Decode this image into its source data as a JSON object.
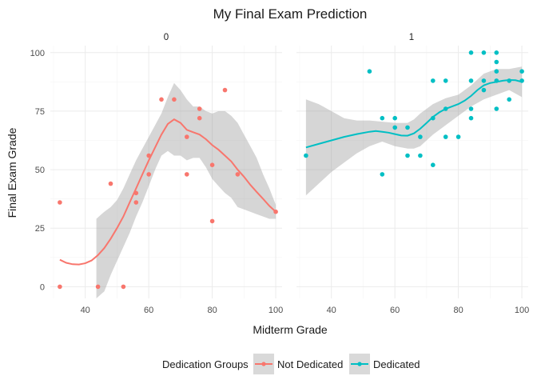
{
  "chart_data": {
    "type": "scatter",
    "title": "My Final Exam Prediction",
    "xlabel": "Midterm Grade",
    "ylabel": "Final Exam Grade",
    "xlim": [
      29,
      102
    ],
    "ylim": [
      -5,
      103
    ],
    "x_ticks": [
      40,
      60,
      80,
      100
    ],
    "y_ticks": [
      0,
      25,
      50,
      75,
      100
    ],
    "grid": true,
    "legend": {
      "title": "Dedication Groups",
      "position": "bottom",
      "entries": [
        {
          "label": "Not Dedicated",
          "color": "#F8766D"
        },
        {
          "label": "Dedicated",
          "color": "#00BFC4"
        }
      ]
    },
    "panels": [
      {
        "label": "0",
        "series": "Not Dedicated",
        "color": "#F8766D",
        "points": [
          [
            32,
            36
          ],
          [
            32,
            0
          ],
          [
            44,
            0
          ],
          [
            48,
            44
          ],
          [
            52,
            0
          ],
          [
            56,
            36
          ],
          [
            56,
            40
          ],
          [
            60,
            56
          ],
          [
            60,
            48
          ],
          [
            64,
            80
          ],
          [
            68,
            80
          ],
          [
            72,
            64
          ],
          [
            72,
            48
          ],
          [
            76,
            76
          ],
          [
            76,
            72
          ],
          [
            80,
            52
          ],
          [
            80,
            28
          ],
          [
            84,
            84
          ],
          [
            88,
            48
          ],
          [
            100,
            32
          ]
        ],
        "smooth": [
          [
            32,
            11.5
          ],
          [
            34,
            10.2
          ],
          [
            36,
            9.6
          ],
          [
            38,
            9.5
          ],
          [
            40,
            10.0
          ],
          [
            42,
            11.2
          ],
          [
            44,
            13.5
          ],
          [
            46,
            16.5
          ],
          [
            48,
            20.5
          ],
          [
            50,
            25.0
          ],
          [
            52,
            30.0
          ],
          [
            54,
            36.0
          ],
          [
            56,
            42.0
          ],
          [
            58,
            48.0
          ],
          [
            60,
            54.0
          ],
          [
            62,
            59.5
          ],
          [
            64,
            65.0
          ],
          [
            66,
            69.5
          ],
          [
            68,
            71.5
          ],
          [
            70,
            70.0
          ],
          [
            72,
            67.0
          ],
          [
            74,
            66.0
          ],
          [
            76,
            65.0
          ],
          [
            78,
            63.0
          ],
          [
            80,
            60.5
          ],
          [
            82,
            58.5
          ],
          [
            84,
            56.0
          ],
          [
            86,
            53.5
          ],
          [
            88,
            50.0
          ],
          [
            90,
            47.0
          ],
          [
            92,
            43.5
          ],
          [
            94,
            40.5
          ],
          [
            96,
            37.5
          ],
          [
            98,
            34.5
          ],
          [
            100,
            32.0
          ]
        ],
        "band_upper": [
          [
            43.5,
            29
          ],
          [
            46,
            32
          ],
          [
            48,
            34
          ],
          [
            50,
            37
          ],
          [
            52,
            42
          ],
          [
            54,
            48
          ],
          [
            56,
            54
          ],
          [
            58,
            59
          ],
          [
            60,
            64
          ],
          [
            62,
            69
          ],
          [
            64,
            74
          ],
          [
            66,
            81
          ],
          [
            68,
            87
          ],
          [
            70,
            84
          ],
          [
            72,
            80
          ],
          [
            74,
            77
          ],
          [
            76,
            77
          ],
          [
            78,
            75
          ],
          [
            80,
            74
          ],
          [
            82,
            75
          ],
          [
            84,
            75
          ],
          [
            86,
            73
          ],
          [
            88,
            70
          ],
          [
            90,
            65
          ],
          [
            92,
            60
          ],
          [
            94,
            55
          ],
          [
            96,
            48
          ],
          [
            98,
            42
          ],
          [
            100,
            35
          ]
        ],
        "band_lower": [
          [
            100,
            29
          ],
          [
            98,
            29
          ],
          [
            96,
            30
          ],
          [
            94,
            31
          ],
          [
            92,
            32
          ],
          [
            90,
            33
          ],
          [
            88,
            34
          ],
          [
            86,
            38
          ],
          [
            84,
            40
          ],
          [
            82,
            43
          ],
          [
            80,
            46
          ],
          [
            78,
            51
          ],
          [
            76,
            55
          ],
          [
            74,
            55
          ],
          [
            72,
            54
          ],
          [
            70,
            56
          ],
          [
            68,
            56
          ],
          [
            66,
            58
          ],
          [
            64,
            56
          ],
          [
            62,
            50
          ],
          [
            60,
            43
          ],
          [
            58,
            36
          ],
          [
            56,
            30
          ],
          [
            54,
            23
          ],
          [
            52,
            17
          ],
          [
            50,
            11
          ],
          [
            48,
            5
          ],
          [
            46,
            -2
          ],
          [
            43.5,
            -5
          ]
        ]
      },
      {
        "label": "1",
        "series": "Dedicated",
        "color": "#00BFC4",
        "points": [
          [
            32,
            56
          ],
          [
            52,
            92
          ],
          [
            56,
            72
          ],
          [
            56,
            48
          ],
          [
            60,
            72
          ],
          [
            60,
            68
          ],
          [
            64,
            68
          ],
          [
            64,
            56
          ],
          [
            68,
            64
          ],
          [
            68,
            56
          ],
          [
            72,
            88
          ],
          [
            72,
            72
          ],
          [
            72,
            52
          ],
          [
            76,
            88
          ],
          [
            76,
            76
          ],
          [
            76,
            64
          ],
          [
            80,
            64
          ],
          [
            84,
            100
          ],
          [
            84,
            88
          ],
          [
            84,
            76
          ],
          [
            84,
            72
          ],
          [
            88,
            100
          ],
          [
            88,
            88
          ],
          [
            88,
            84
          ],
          [
            92,
            100
          ],
          [
            92,
            96
          ],
          [
            92,
            92
          ],
          [
            92,
            88
          ],
          [
            92,
            76
          ],
          [
            96,
            88
          ],
          [
            96,
            80
          ],
          [
            100,
            92
          ],
          [
            100,
            88
          ]
        ],
        "smooth": [
          [
            32,
            59.5
          ],
          [
            36,
            61.0
          ],
          [
            40,
            62.5
          ],
          [
            44,
            64.0
          ],
          [
            48,
            65.2
          ],
          [
            52,
            66.2
          ],
          [
            54,
            66.5
          ],
          [
            56,
            66.2
          ],
          [
            58,
            65.8
          ],
          [
            60,
            65.2
          ],
          [
            62,
            64.6
          ],
          [
            64,
            64.5
          ],
          [
            66,
            65.5
          ],
          [
            68,
            67.5
          ],
          [
            70,
            70.0
          ],
          [
            72,
            72.5
          ],
          [
            74,
            74.5
          ],
          [
            76,
            76.0
          ],
          [
            78,
            77.0
          ],
          [
            80,
            78.0
          ],
          [
            82,
            79.5
          ],
          [
            84,
            81.5
          ],
          [
            86,
            84.0
          ],
          [
            88,
            86.0
          ],
          [
            90,
            87.0
          ],
          [
            92,
            87.5
          ],
          [
            94,
            88.0
          ],
          [
            96,
            88.3
          ],
          [
            98,
            88.2
          ],
          [
            100,
            87.5
          ]
        ],
        "band_upper": [
          [
            32,
            80
          ],
          [
            36,
            78
          ],
          [
            40,
            75
          ],
          [
            44,
            72
          ],
          [
            48,
            71
          ],
          [
            52,
            71
          ],
          [
            56,
            70.5
          ],
          [
            60,
            70
          ],
          [
            64,
            70
          ],
          [
            66,
            71.5
          ],
          [
            68,
            74
          ],
          [
            72,
            78
          ],
          [
            76,
            80.5
          ],
          [
            80,
            82
          ],
          [
            84,
            86
          ],
          [
            88,
            91
          ],
          [
            92,
            93
          ],
          [
            96,
            93
          ],
          [
            100,
            94
          ]
        ],
        "band_lower": [
          [
            100,
            81
          ],
          [
            96,
            84
          ],
          [
            92,
            82
          ],
          [
            88,
            80
          ],
          [
            84,
            77
          ],
          [
            80,
            73
          ],
          [
            76,
            69
          ],
          [
            72,
            65
          ],
          [
            68,
            60
          ],
          [
            66,
            59
          ],
          [
            64,
            59
          ],
          [
            60,
            60
          ],
          [
            56,
            62
          ],
          [
            52,
            60
          ],
          [
            48,
            57
          ],
          [
            44,
            53
          ],
          [
            40,
            49
          ],
          [
            36,
            44
          ],
          [
            32,
            39
          ]
        ]
      }
    ]
  }
}
